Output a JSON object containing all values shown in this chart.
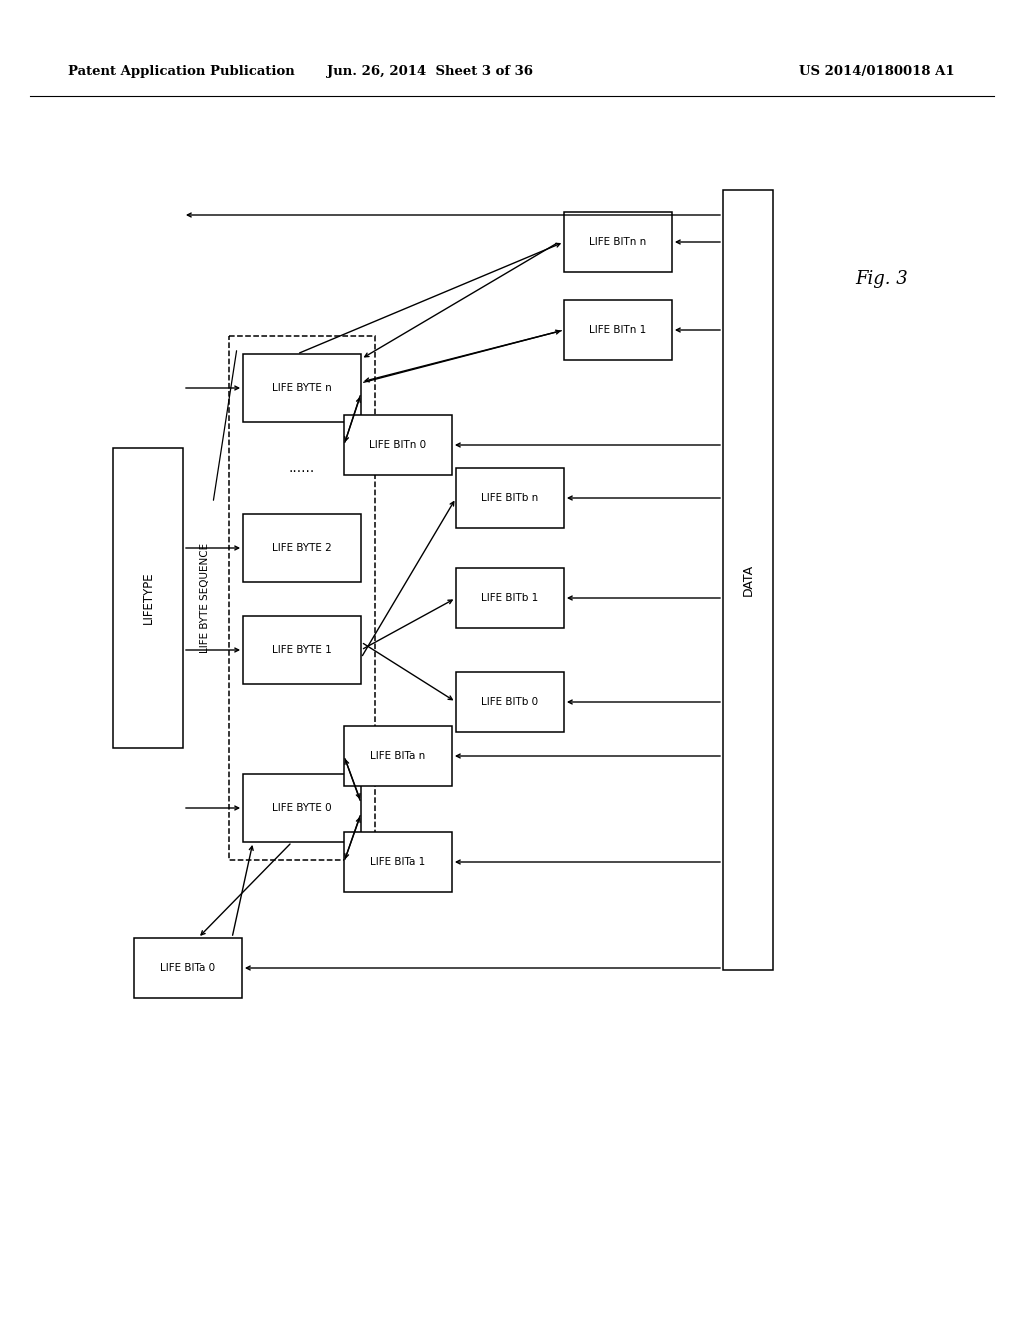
{
  "header_left": "Patent Application Publication",
  "header_mid": "Jun. 26, 2014  Sheet 3 of 36",
  "header_right": "US 2014/0180018 A1",
  "fig_label": "Fig. 3",
  "bg_color": "#ffffff"
}
